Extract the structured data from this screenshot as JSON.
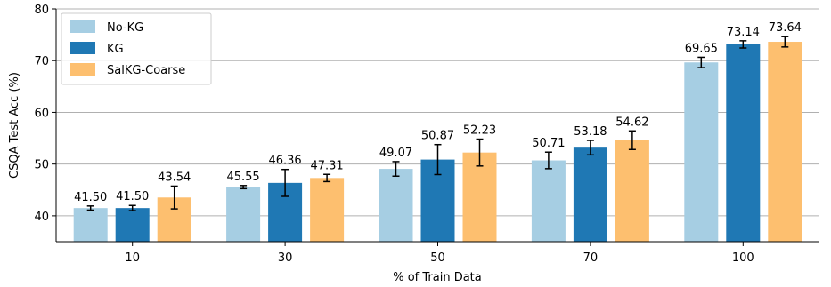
{
  "chart_data": {
    "type": "bar",
    "categories": [
      "10",
      "30",
      "50",
      "70",
      "100"
    ],
    "series": [
      {
        "name": "No-KG",
        "color": "#a6cee3",
        "values": [
          41.5,
          45.55,
          49.07,
          50.71,
          69.65
        ],
        "errors": [
          0.4,
          0.3,
          1.4,
          1.6,
          1.0
        ],
        "labels": [
          "41.50",
          "45.55",
          "49.07",
          "50.71",
          "69.65"
        ]
      },
      {
        "name": "KG",
        "color": "#1f78b4",
        "values": [
          41.5,
          46.36,
          50.87,
          53.18,
          73.14
        ],
        "errors": [
          0.5,
          2.6,
          2.9,
          1.4,
          0.7
        ],
        "labels": [
          "41.50",
          "46.36",
          "50.87",
          "53.18",
          "73.14"
        ]
      },
      {
        "name": "SalKG-Coarse",
        "color": "#fdbf6f",
        "values": [
          43.54,
          47.31,
          52.23,
          54.62,
          73.64
        ],
        "errors": [
          2.2,
          0.7,
          2.6,
          1.8,
          1.0
        ],
        "labels": [
          "43.54",
          "47.31",
          "52.23",
          "54.62",
          "73.64"
        ]
      }
    ],
    "xlabel": "% of Train Data",
    "ylabel": "CSQA Test Acc (%)",
    "ylim": [
      35,
      80
    ],
    "yticks": [
      "40",
      "50",
      "60",
      "70",
      "80"
    ],
    "grid": "horizontal",
    "legend_position": "top-left"
  }
}
